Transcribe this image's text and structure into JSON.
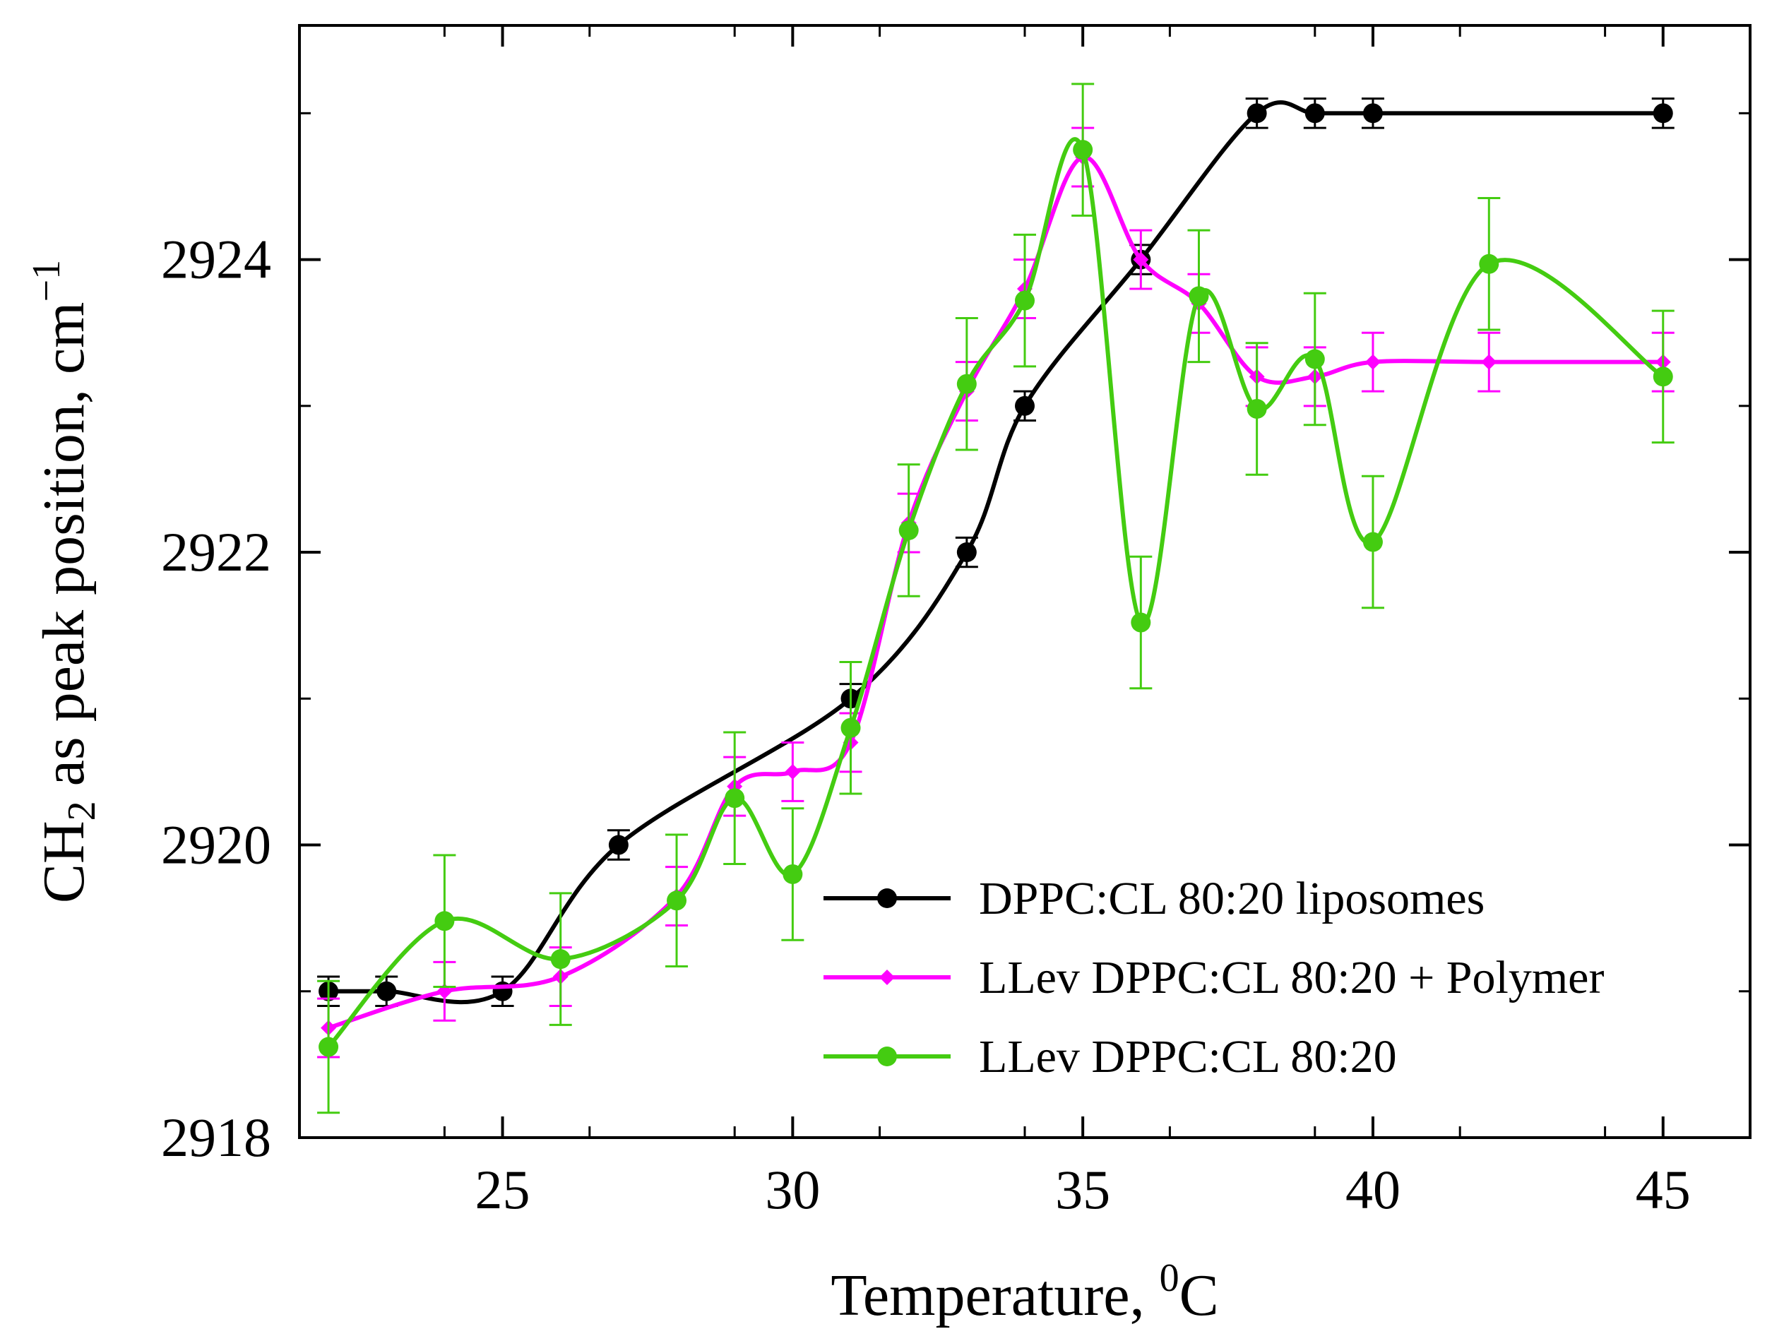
{
  "chart_data": {
    "type": "line",
    "xlabel": "Temperature, ",
    "xlabel_sup": "0",
    "xlabel_tail": "C",
    "ylabel_parts": {
      "main": "CH",
      "sub": "2",
      "mid": " as peak position, cm",
      "sup": "−1"
    },
    "xlim": [
      21.5,
      46.5
    ],
    "ylim": [
      2918,
      2925.6
    ],
    "xticks": [
      25,
      30,
      35,
      40,
      45
    ],
    "yticks": [
      2918,
      2920,
      2922,
      2924
    ],
    "xtick_labels": [
      "25",
      "30",
      "35",
      "40",
      "45"
    ],
    "ytick_labels": [
      "2918",
      "2920",
      "2922",
      "2924"
    ],
    "legend_position": "bottom-right",
    "series": [
      {
        "name": "DPPC:CL 80:20 liposomes",
        "color": "#000000",
        "marker": "circle",
        "x": [
          22,
          23,
          25,
          27,
          31,
          33,
          34,
          36,
          38,
          39,
          40,
          45
        ],
        "y": [
          2919.0,
          2919.0,
          2919.0,
          2920.0,
          2921.0,
          2922.0,
          2923.0,
          2924.0,
          2925.0,
          2925.0,
          2925.0,
          2925.0
        ],
        "err": [
          0.1,
          0.1,
          0.1,
          0.1,
          0.1,
          0.1,
          0.1,
          0.1,
          0.1,
          0.1,
          0.1,
          0.1
        ]
      },
      {
        "name": "LLev DPPC:CL 80:20 + Polymer",
        "color": "#ff00ff",
        "marker": "diamond",
        "x": [
          22,
          24,
          26,
          28,
          29,
          30,
          31,
          32,
          33,
          34,
          35,
          36,
          37,
          38,
          39,
          40,
          42,
          45
        ],
        "y": [
          2918.75,
          2919.0,
          2919.1,
          2919.65,
          2920.4,
          2920.5,
          2920.7,
          2922.2,
          2923.1,
          2923.8,
          2924.7,
          2924.0,
          2923.7,
          2923.2,
          2923.2,
          2923.3,
          2923.3,
          2923.3
        ],
        "err": [
          0.2,
          0.2,
          0.2,
          0.2,
          0.2,
          0.2,
          0.2,
          0.2,
          0.2,
          0.2,
          0.2,
          0.2,
          0.2,
          0.2,
          0.2,
          0.2,
          0.2,
          0.2
        ]
      },
      {
        "name": "LLev DPPC:CL 80:20",
        "color": "#44cc11",
        "marker": "circle",
        "x": [
          22,
          24,
          26,
          28,
          29,
          30,
          31,
          32,
          33,
          34,
          35,
          36,
          37,
          38,
          39,
          40,
          42,
          45
        ],
        "y": [
          2918.62,
          2919.48,
          2919.22,
          2919.62,
          2920.32,
          2919.8,
          2920.8,
          2922.15,
          2923.15,
          2923.72,
          2924.75,
          2921.52,
          2923.75,
          2922.98,
          2923.32,
          2922.07,
          2923.97,
          2923.2
        ],
        "err": [
          0.45,
          0.45,
          0.45,
          0.45,
          0.45,
          0.45,
          0.45,
          0.45,
          0.45,
          0.45,
          0.45,
          0.45,
          0.45,
          0.45,
          0.45,
          0.45,
          0.45,
          0.45
        ]
      }
    ]
  }
}
